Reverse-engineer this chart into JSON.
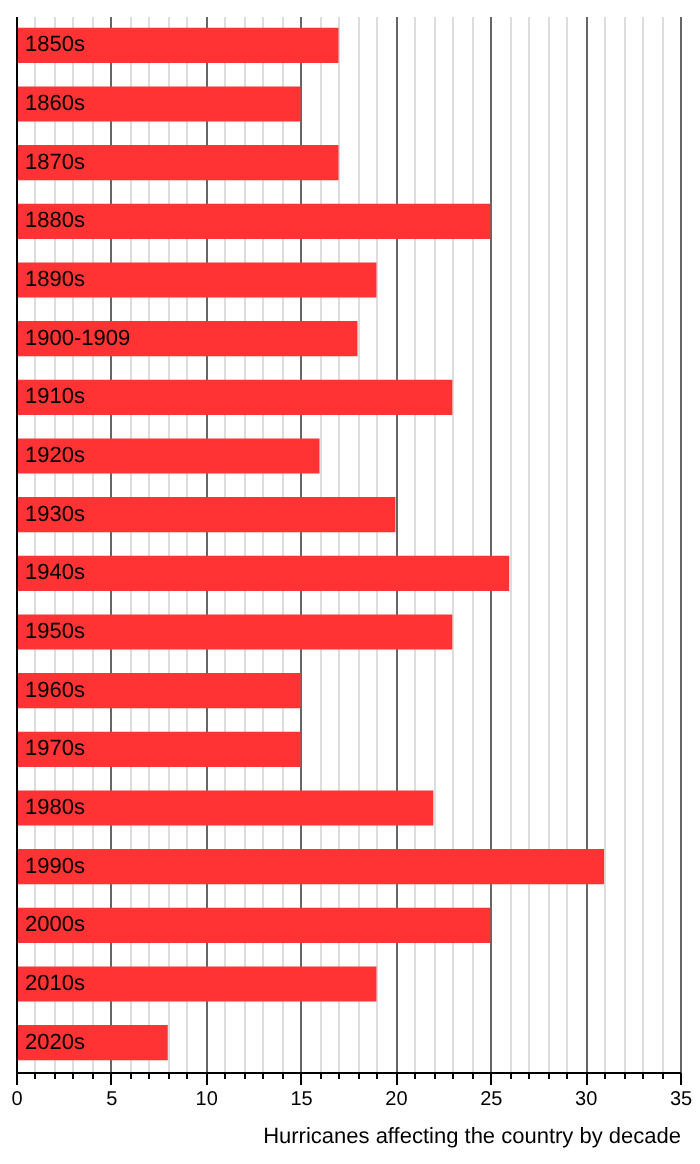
{
  "chart_data": {
    "type": "bar",
    "orientation": "horizontal",
    "xlabel": "Hurricanes affecting the country by decade",
    "categories": [
      "1850s",
      "1860s",
      "1870s",
      "1880s",
      "1890s",
      "1900-1909",
      "1910s",
      "1920s",
      "1930s",
      "1940s",
      "1950s",
      "1960s",
      "1970s",
      "1980s",
      "1990s",
      "2000s",
      "2010s",
      "2020s"
    ],
    "values": [
      17,
      15,
      17,
      25,
      19,
      18,
      23,
      16,
      20,
      26,
      23,
      15,
      15,
      22,
      31,
      25,
      19,
      8
    ],
    "color": "#ff3333",
    "xlim": [
      0,
      35
    ],
    "xticks": [
      0,
      {
        "value": 1,
        "label": null
      },
      {
        "value": 2,
        "label": null
      },
      {
        "value": 3,
        "label": null
      },
      {
        "value": 4,
        "label": null
      },
      5,
      {
        "value": 6,
        "label": null
      },
      {
        "value": 7,
        "label": null
      },
      {
        "value": 8,
        "label": null
      },
      {
        "value": 9,
        "label": null
      },
      10,
      {
        "value": 11,
        "label": null
      },
      {
        "value": 12,
        "label": null
      },
      {
        "value": 13,
        "label": null
      },
      {
        "value": 14,
        "label": null
      },
      15,
      {
        "value": 16,
        "label": null
      },
      {
        "value": 17,
        "label": null
      },
      {
        "value": 18,
        "label": null
      },
      {
        "value": 19,
        "label": null
      },
      20,
      {
        "value": 21,
        "label": null
      },
      {
        "value": 22,
        "label": null
      },
      {
        "value": 23,
        "label": null
      },
      {
        "value": 24,
        "label": null
      },
      25,
      {
        "value": 26,
        "label": null
      },
      {
        "value": 27,
        "label": null
      },
      {
        "value": 28,
        "label": null
      },
      {
        "value": 29,
        "label": null
      },
      30,
      {
        "value": 31,
        "label": null
      },
      {
        "value": 32,
        "label": null
      },
      {
        "value": 33,
        "label": null
      },
      {
        "value": 34,
        "label": null
      },
      35
    ],
    "grid": "x"
  }
}
